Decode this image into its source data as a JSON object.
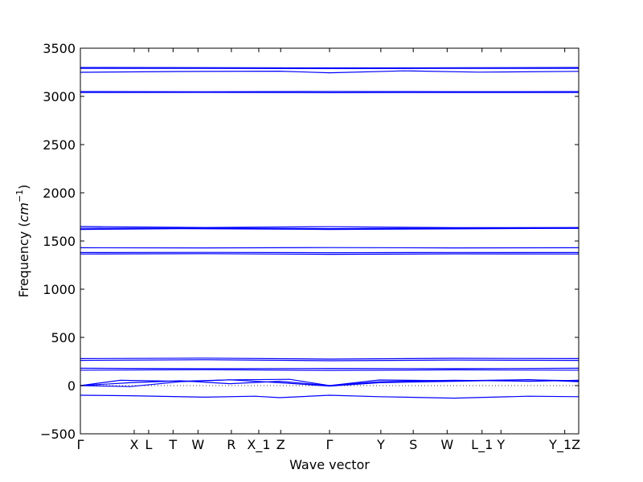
{
  "chart_data": {
    "type": "line",
    "title": "",
    "xlabel": "Wave vector",
    "ylabel": "Frequency",
    "ylabel_unit": "cm",
    "ylabel_unit_exp": "−1",
    "ylim": [
      -500,
      3500
    ],
    "yticks": [
      -500,
      0,
      500,
      1000,
      1500,
      2000,
      2500,
      3000,
      3500
    ],
    "xlim": [
      0,
      100
    ],
    "high_symmetry_points": [
      {
        "label": "Γ",
        "x": 0
      },
      {
        "label": "X",
        "x": 10.8
      },
      {
        "label": "L",
        "x": 13.7
      },
      {
        "label": "T",
        "x": 18.6
      },
      {
        "label": "W",
        "x": 23.6
      },
      {
        "label": "R",
        "x": 30.3
      },
      {
        "label": "X_1",
        "x": 35.8
      },
      {
        "label": "Z",
        "x": 40.2
      },
      {
        "label": "Γ",
        "x": 50.0
      },
      {
        "label": "Y",
        "x": 60.3
      },
      {
        "label": "S",
        "x": 66.8
      },
      {
        "label": "W",
        "x": 73.6
      },
      {
        "label": "L_1",
        "x": 80.6
      },
      {
        "label": "Y",
        "x": 84.4
      },
      {
        "label": "Y_1Z",
        "x": 97.2
      }
    ],
    "series_color": "#0000ff",
    "zero_line": true,
    "grid": false,
    "series": [
      {
        "x": [
          0,
          25,
          50,
          75,
          100
        ],
        "values": [
          3300,
          3298,
          3296,
          3297,
          3300
        ]
      },
      {
        "x": [
          0,
          25,
          50,
          75,
          100
        ],
        "values": [
          3290,
          3291,
          3288,
          3290,
          3290
        ]
      },
      {
        "x": [
          0,
          20,
          40,
          50,
          65,
          80,
          100
        ],
        "values": [
          3250,
          3258,
          3262,
          3245,
          3265,
          3252,
          3260
        ]
      },
      {
        "x": [
          0,
          25,
          50,
          75,
          100
        ],
        "values": [
          3050,
          3048,
          3052,
          3049,
          3050
        ]
      },
      {
        "x": [
          0,
          25,
          50,
          75,
          100
        ],
        "values": [
          3040,
          3042,
          3038,
          3041,
          3040
        ]
      },
      {
        "x": [
          0,
          25,
          50,
          75,
          100
        ],
        "values": [
          1650,
          1640,
          1648,
          1638,
          1640
        ]
      },
      {
        "x": [
          0,
          25,
          50,
          75,
          100
        ],
        "values": [
          1632,
          1634,
          1628,
          1633,
          1632
        ]
      },
      {
        "x": [
          0,
          20,
          50,
          75,
          100
        ],
        "values": [
          1620,
          1628,
          1620,
          1626,
          1632
        ]
      },
      {
        "x": [
          0,
          25,
          50,
          75,
          100
        ],
        "values": [
          1430,
          1428,
          1432,
          1428,
          1430
        ]
      },
      {
        "x": [
          0,
          25,
          50,
          75,
          100
        ],
        "values": [
          1380,
          1382,
          1378,
          1381,
          1380
        ]
      },
      {
        "x": [
          0,
          25,
          50,
          75,
          100
        ],
        "values": [
          1365,
          1368,
          1362,
          1367,
          1365
        ]
      },
      {
        "x": [
          0,
          25,
          50,
          75,
          100
        ],
        "values": [
          280,
          285,
          275,
          283,
          280
        ]
      },
      {
        "x": [
          0,
          25,
          50,
          75,
          100
        ],
        "values": [
          262,
          268,
          258,
          265,
          262
        ]
      },
      {
        "x": [
          0,
          25,
          50,
          75,
          100
        ],
        "values": [
          180,
          175,
          178,
          176,
          180
        ]
      },
      {
        "x": [
          0,
          25,
          50,
          75,
          100
        ],
        "values": [
          160,
          165,
          158,
          163,
          160
        ]
      },
      {
        "x": [
          0,
          8,
          20,
          30,
          42,
          50,
          60,
          75,
          90,
          100
        ],
        "values": [
          0,
          55,
          45,
          60,
          65,
          0,
          58,
          50,
          62,
          40
        ]
      },
      {
        "x": [
          0,
          10,
          20,
          30,
          40,
          50,
          60,
          75,
          90,
          100
        ],
        "values": [
          0,
          30,
          50,
          20,
          45,
          0,
          40,
          55,
          45,
          55
        ]
      },
      {
        "x": [
          0,
          10,
          20,
          30,
          40,
          50,
          60,
          75,
          90,
          100
        ],
        "values": [
          0,
          -10,
          40,
          60,
          30,
          -5,
          30,
          45,
          60,
          50
        ]
      },
      {
        "x": [
          0,
          10,
          25,
          35,
          40,
          50,
          60,
          75,
          90,
          100
        ],
        "values": [
          -100,
          -105,
          -120,
          -110,
          -125,
          -100,
          -115,
          -130,
          -110,
          -115
        ]
      }
    ]
  }
}
